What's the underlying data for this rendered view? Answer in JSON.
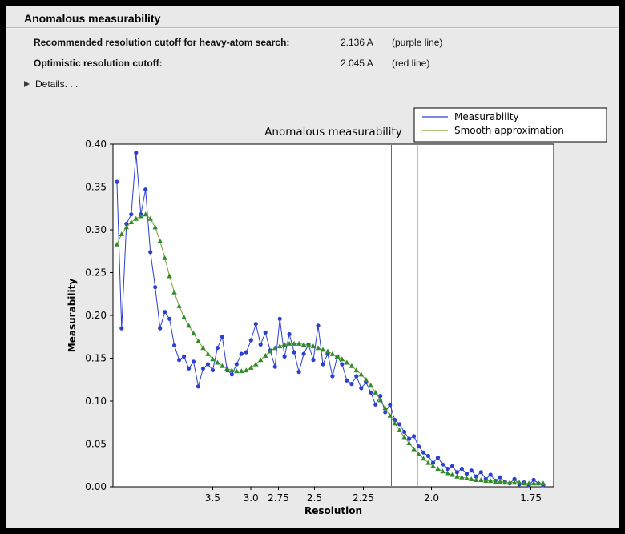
{
  "window": {
    "title": "Anomalous measurability"
  },
  "info": {
    "rows": [
      {
        "label": "Recommended resolution cutoff for heavy-atom search:",
        "value": "2.136 A",
        "note": "(purple line)"
      },
      {
        "label": "Optimistic resolution cutoff:",
        "value": "2.045 A",
        "note": "(red line)"
      }
    ],
    "details_label": "Details. . ."
  },
  "chart_data": {
    "type": "line",
    "title": "Anomalous measurability",
    "xlabel": "Resolution",
    "ylabel": "Measurability",
    "grid": false,
    "legend": {
      "position": "upper right"
    },
    "x_axis": {
      "scale": "1/d^2",
      "smin": 0.005,
      "smax": 0.344,
      "ticks": [
        3.5,
        3.0,
        2.75,
        2.5,
        2.25,
        2.0,
        1.75
      ],
      "tick_labels": [
        "3.5",
        "3.0",
        "2.75",
        "2.5",
        "2.25",
        "2.0",
        "1.75"
      ]
    },
    "y_axis": {
      "min": 0.0,
      "max": 0.4,
      "ticks": [
        0.0,
        0.05,
        0.1,
        0.15,
        0.2,
        0.25,
        0.3,
        0.35,
        0.4
      ],
      "tick_labels": [
        "0.00",
        "0.05",
        "0.10",
        "0.15",
        "0.20",
        "0.25",
        "0.30",
        "0.35",
        "0.40"
      ]
    },
    "points": {
      "s_start": 0.008,
      "s_end": 0.336
    },
    "vlines": [
      {
        "name": "recommended-cutoff-line",
        "resolution": 2.136,
        "color": "#b32fb3",
        "label": "purple line"
      },
      {
        "name": "optimistic-cutoff-line",
        "resolution": 2.045,
        "color": "#8f2b21",
        "label": "red line"
      }
    ],
    "series": [
      {
        "name": "Measurability",
        "line_color": "#2b3fd0",
        "marker": "circle",
        "marker_color": "#2b3fd0",
        "values": [
          0.356,
          0.185,
          0.307,
          0.318,
          0.39,
          0.318,
          0.347,
          0.274,
          0.233,
          0.185,
          0.204,
          0.196,
          0.165,
          0.148,
          0.152,
          0.138,
          0.146,
          0.117,
          0.138,
          0.143,
          0.136,
          0.162,
          0.175,
          0.136,
          0.131,
          0.143,
          0.155,
          0.157,
          0.171,
          0.19,
          0.166,
          0.18,
          0.159,
          0.14,
          0.196,
          0.152,
          0.178,
          0.157,
          0.134,
          0.155,
          0.166,
          0.148,
          0.188,
          0.143,
          0.155,
          0.129,
          0.152,
          0.143,
          0.124,
          0.12,
          0.129,
          0.115,
          0.122,
          0.11,
          0.096,
          0.106,
          0.087,
          0.096,
          0.078,
          0.073,
          0.064,
          0.056,
          0.059,
          0.047,
          0.04,
          0.036,
          0.028,
          0.034,
          0.026,
          0.021,
          0.024,
          0.017,
          0.021,
          0.015,
          0.019,
          0.012,
          0.017,
          0.009,
          0.014,
          0.007,
          0.011,
          0.006,
          0.004,
          0.009,
          0.003,
          0.005,
          0.002,
          0.008,
          0.004,
          0.002
        ]
      },
      {
        "name": "Smooth approximation",
        "line_color": "#7d9d2a",
        "marker": "triangle",
        "marker_color": "#2f8b2f",
        "values": [
          0.283,
          0.295,
          0.303,
          0.309,
          0.313,
          0.316,
          0.318,
          0.313,
          0.303,
          0.287,
          0.267,
          0.246,
          0.227,
          0.211,
          0.198,
          0.188,
          0.179,
          0.17,
          0.162,
          0.155,
          0.149,
          0.145,
          0.141,
          0.138,
          0.136,
          0.135,
          0.135,
          0.136,
          0.139,
          0.143,
          0.148,
          0.153,
          0.158,
          0.162,
          0.164,
          0.166,
          0.167,
          0.167,
          0.167,
          0.166,
          0.165,
          0.164,
          0.162,
          0.16,
          0.158,
          0.155,
          0.152,
          0.149,
          0.145,
          0.141,
          0.136,
          0.131,
          0.125,
          0.118,
          0.11,
          0.101,
          0.092,
          0.083,
          0.074,
          0.066,
          0.058,
          0.051,
          0.044,
          0.038,
          0.033,
          0.028,
          0.024,
          0.021,
          0.018,
          0.016,
          0.014,
          0.012,
          0.011,
          0.01,
          0.009,
          0.008,
          0.008,
          0.007,
          0.007,
          0.006,
          0.006,
          0.005,
          0.005,
          0.005,
          0.005,
          0.004,
          0.004,
          0.004,
          0.004,
          0.004
        ]
      }
    ]
  }
}
